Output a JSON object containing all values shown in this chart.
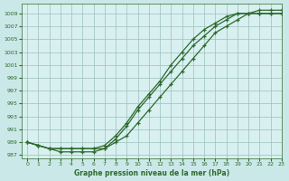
{
  "title": "Graphe pression niveau de la mer (hPa)",
  "background_color": "#cbe8e8",
  "plot_bg_color": "#d8f0f0",
  "grid_color": "#9dbfbf",
  "line_color": "#2d6a2d",
  "marker_color": "#2d6a2d",
  "xlim": [
    -0.5,
    23
  ],
  "ylim": [
    986.5,
    1010.5
  ],
  "yticks": [
    987,
    989,
    991,
    993,
    995,
    997,
    999,
    1001,
    1003,
    1005,
    1007,
    1009
  ],
  "xticks": [
    0,
    1,
    2,
    3,
    4,
    5,
    6,
    7,
    8,
    9,
    10,
    11,
    12,
    13,
    14,
    15,
    16,
    17,
    18,
    19,
    20,
    21,
    22,
    23
  ],
  "series1_x": [
    0,
    1,
    2,
    3,
    4,
    5,
    6,
    7,
    8,
    9,
    10,
    11,
    12,
    13,
    14,
    15,
    16,
    17,
    18,
    19,
    20,
    21,
    22,
    23
  ],
  "series1_y": [
    989,
    988.5,
    988,
    987.5,
    987.5,
    987.5,
    987.5,
    988,
    989,
    990,
    992,
    994,
    996,
    998,
    1000,
    1002,
    1004,
    1006,
    1007,
    1008,
    1009,
    1009,
    1009,
    1009
  ],
  "series2_x": [
    0,
    1,
    2,
    3,
    4,
    5,
    6,
    7,
    8,
    9,
    10,
    11,
    12,
    13,
    14,
    15,
    16,
    17,
    18,
    19,
    20,
    21,
    22,
    23
  ],
  "series2_y": [
    989,
    988.5,
    988,
    988,
    988,
    988,
    988,
    988.5,
    990,
    992,
    994.5,
    996.5,
    998.5,
    1001,
    1003,
    1005,
    1006.5,
    1007.5,
    1008.5,
    1009,
    1009,
    1009,
    1009,
    1009
  ],
  "series3_x": [
    0,
    1,
    2,
    3,
    4,
    5,
    6,
    7,
    8,
    9,
    10,
    11,
    12,
    13,
    14,
    15,
    16,
    17,
    18,
    19,
    20,
    21,
    22,
    23
  ],
  "series3_y": [
    989,
    988.5,
    988,
    988,
    988,
    988,
    988,
    988,
    989.5,
    991.5,
    994,
    996,
    998,
    1000,
    1002,
    1004,
    1005.5,
    1007,
    1008,
    1009,
    1009,
    1009.5,
    1009.5,
    1009.5
  ]
}
